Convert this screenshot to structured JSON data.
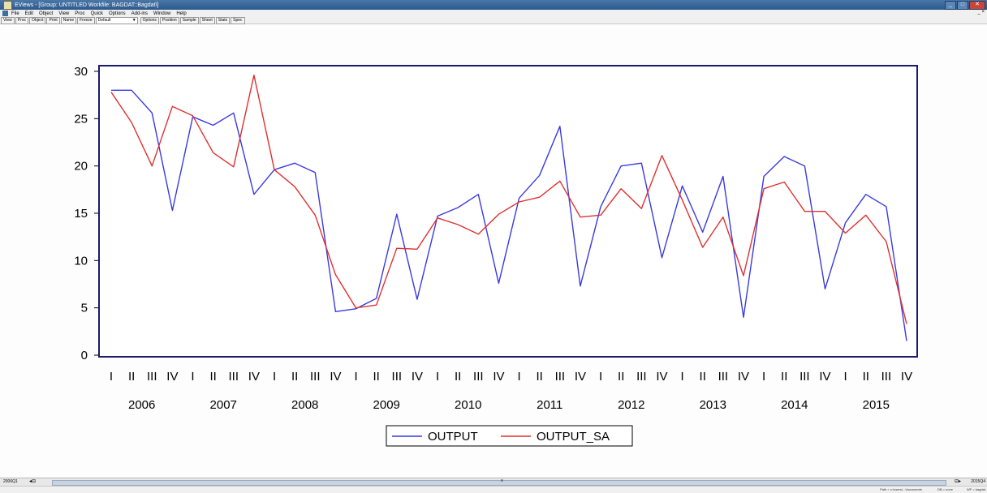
{
  "window": {
    "title": "EViews - [Group: UNTITLED   Workfile: BAGDAT::Bagdat\\]",
    "buttons": {
      "min": "_",
      "max": "□",
      "close": "✕"
    },
    "restore_label": "_ ×"
  },
  "menu": [
    "File",
    "Edit",
    "Object",
    "View",
    "Proc",
    "Quick",
    "Options",
    "Add-ins",
    "Window",
    "Help"
  ],
  "toolbar": {
    "group1": [
      "View",
      "Proc",
      "Object",
      "Print",
      "Name",
      "Freeze"
    ],
    "select_value": "Default",
    "group2": [
      "Options",
      "Position",
      "Sample",
      "Sheet",
      "Stats",
      "Spec"
    ]
  },
  "scrollbar": {
    "sample_start": "2006Q1",
    "sample_end": "2015Q4"
  },
  "status": {
    "path": "Path = c:\\users\\...\\documents",
    "db": "DB = none",
    "wf": "WF = bagdat"
  },
  "colors": {
    "output": "#3a3ae0",
    "output_sa": "#e03030",
    "frame": "#1a1a6e"
  },
  "chart_data": {
    "type": "line",
    "title": "",
    "xlabel": "",
    "ylabel": "",
    "ylim": [
      0,
      30
    ],
    "yticks": [
      0,
      5,
      10,
      15,
      20,
      25,
      30
    ],
    "quarter_labels": [
      "I",
      "II",
      "III",
      "IV"
    ],
    "years": [
      "2006",
      "2007",
      "2008",
      "2009",
      "2010",
      "2011",
      "2012",
      "2013",
      "2014",
      "2015"
    ],
    "legend_position": "bottom",
    "series": [
      {
        "name": "OUTPUT",
        "color": "#3a3ae0",
        "values": [
          28.0,
          28.0,
          25.6,
          15.3,
          25.2,
          24.3,
          25.6,
          17.0,
          19.6,
          20.3,
          19.3,
          4.6,
          4.9,
          6.0,
          14.9,
          5.9,
          14.7,
          15.6,
          17.0,
          7.6,
          16.6,
          19.0,
          24.2,
          7.3,
          15.7,
          20.0,
          20.3,
          10.3,
          17.9,
          13.0,
          18.9,
          4.0,
          18.9,
          21.0,
          20.0,
          7.0,
          14.0,
          17.0,
          15.7,
          1.5
        ]
      },
      {
        "name": "OUTPUT_SA",
        "color": "#e03030",
        "values": [
          27.8,
          24.6,
          20.0,
          26.3,
          25.3,
          21.4,
          19.9,
          29.6,
          19.6,
          17.8,
          14.8,
          8.5,
          5.0,
          5.3,
          11.3,
          11.2,
          14.5,
          13.8,
          12.8,
          14.9,
          16.2,
          16.7,
          18.4,
          14.6,
          14.8,
          17.6,
          15.5,
          21.1,
          16.4,
          11.4,
          14.6,
          8.4,
          17.6,
          18.3,
          15.2,
          15.2,
          12.9,
          14.8,
          12.0,
          3.3
        ]
      }
    ]
  }
}
